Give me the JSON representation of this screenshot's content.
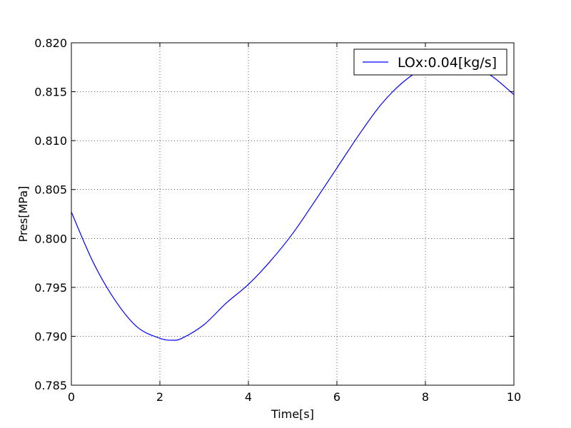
{
  "chart_data": {
    "type": "line",
    "title": "",
    "xlabel": "Time[s]",
    "ylabel": "Pres[MPa]",
    "xlim": [
      0,
      10
    ],
    "ylim": [
      0.785,
      0.82
    ],
    "x_ticks": [
      0,
      2,
      4,
      6,
      8,
      10
    ],
    "x_tick_labels": [
      "0",
      "2",
      "4",
      "6",
      "8",
      "10"
    ],
    "y_ticks": [
      0.785,
      0.79,
      0.795,
      0.8,
      0.805,
      0.81,
      0.815,
      0.82
    ],
    "y_tick_labels": [
      "0.785",
      "0.790",
      "0.795",
      "0.800",
      "0.805",
      "0.810",
      "0.815",
      "0.820"
    ],
    "grid": true,
    "legend_position": "top-right",
    "series": [
      {
        "name": "LOx:0.04[kg/s]",
        "color": "#0000ff",
        "x": [
          0,
          0.5,
          1,
          1.5,
          2,
          2.27,
          2.5,
          3,
          3.5,
          4,
          4.5,
          5,
          5.5,
          6,
          6.5,
          7,
          7.5,
          8,
          8.5,
          9,
          9.5,
          10
        ],
        "y": [
          0.8027,
          0.7975,
          0.7936,
          0.7909,
          0.7898,
          0.7896,
          0.7898,
          0.7912,
          0.7934,
          0.7953,
          0.7977,
          0.8005,
          0.8038,
          0.8072,
          0.8106,
          0.8137,
          0.816,
          0.8175,
          0.8182,
          0.8178,
          0.8166,
          0.8147
        ]
      }
    ]
  }
}
